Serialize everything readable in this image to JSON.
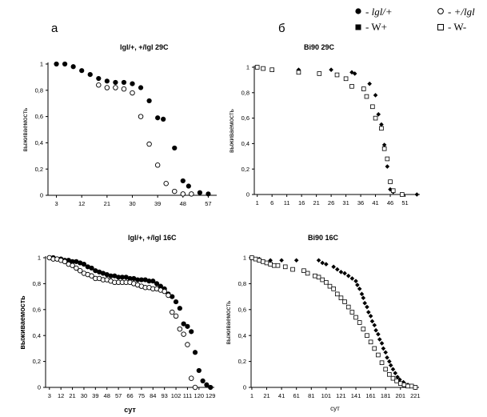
{
  "panel_labels": [
    "а",
    "б"
  ],
  "legend": {
    "items": [
      {
        "symbol": "filled-circle",
        "text": "- lgl/+",
        "italic": true
      },
      {
        "symbol": "open-circle",
        "text": "- +/lgl",
        "italic": true
      },
      {
        "symbol": "filled-square",
        "text": "- W+",
        "italic": false
      },
      {
        "symbol": "open-square",
        "text": "-  W-",
        "italic": false
      }
    ]
  },
  "chart_data": [
    {
      "id": "c1",
      "type": "scatter",
      "title": "lgl/+, +/lgl  29C",
      "xlabel": "",
      "ylabel": "выживаемость",
      "xticks": [
        "3",
        "12",
        "21",
        "30",
        "39",
        "48",
        "57"
      ],
      "xlim": [
        0,
        60
      ],
      "ylim": [
        0,
        1
      ],
      "yticks": [
        "0",
        "0,2",
        "0,4",
        "0,6",
        "0,8",
        "1"
      ],
      "series": [
        {
          "name": "lgl/+",
          "marker": "filled-circle",
          "x": [
            3,
            6,
            9,
            12,
            15,
            18,
            21,
            24,
            27,
            30,
            33,
            36,
            39,
            41,
            45,
            48,
            50,
            54,
            57
          ],
          "y": [
            1.0,
            1.0,
            0.98,
            0.95,
            0.92,
            0.89,
            0.87,
            0.86,
            0.86,
            0.85,
            0.82,
            0.72,
            0.59,
            0.58,
            0.36,
            0.11,
            0.07,
            0.02,
            0.01
          ]
        },
        {
          "name": "+/lgl",
          "marker": "open-circle",
          "x": [
            18,
            21,
            24,
            27,
            30,
            33,
            36,
            39,
            42,
            45,
            48,
            51
          ],
          "y": [
            0.84,
            0.82,
            0.82,
            0.81,
            0.78,
            0.6,
            0.39,
            0.23,
            0.09,
            0.03,
            0.01,
            0.01
          ]
        }
      ]
    },
    {
      "id": "c2",
      "type": "scatter",
      "title": "Bi90 29C",
      "xlabel": "",
      "ylabel": "выживаемость",
      "xticks": [
        "1",
        "6",
        "11",
        "16",
        "21",
        "26",
        "31",
        "36",
        "41",
        "46",
        "51"
      ],
      "xlim": [
        0,
        56
      ],
      "ylim": [
        0,
        1
      ],
      "yticks": [
        "0",
        "0,2",
        "0,4",
        "0,6",
        "0,8",
        "1"
      ],
      "series": [
        {
          "name": "W+",
          "marker": "filled-diamond",
          "x": [
            1,
            15,
            26,
            33,
            34,
            39,
            41,
            42,
            43,
            44,
            45,
            46,
            47,
            55
          ],
          "y": [
            1.0,
            0.98,
            0.98,
            0.96,
            0.95,
            0.87,
            0.78,
            0.63,
            0.55,
            0.39,
            0.22,
            0.04,
            0.02,
            0.0
          ]
        },
        {
          "name": "W-",
          "marker": "open-square",
          "x": [
            1,
            3,
            6,
            15,
            22,
            28,
            31,
            33,
            37,
            38,
            40,
            41,
            43,
            44,
            45,
            46,
            47,
            50
          ],
          "y": [
            1.0,
            0.99,
            0.98,
            0.96,
            0.95,
            0.94,
            0.91,
            0.85,
            0.83,
            0.77,
            0.69,
            0.6,
            0.52,
            0.36,
            0.28,
            0.1,
            0.03,
            0.0
          ]
        }
      ]
    },
    {
      "id": "c3",
      "type": "scatter",
      "title": "lgl/+, +/lgl   16C",
      "xlabel": "сут",
      "ylabel": "выживаемость",
      "xticks": [
        "3",
        "12",
        "21",
        "30",
        "39",
        "48",
        "57",
        "66",
        "75",
        "84",
        "93",
        "102",
        "111",
        "120",
        "129"
      ],
      "xlim": [
        0,
        132
      ],
      "ylim": [
        0,
        1
      ],
      "yticks": [
        "0",
        "0,2",
        "0,4",
        "0,6",
        "0,8",
        "1"
      ],
      "series": [
        {
          "name": "lgl/+",
          "marker": "filled-circle",
          "x": [
            3,
            6,
            9,
            12,
            15,
            18,
            21,
            24,
            27,
            30,
            33,
            36,
            39,
            42,
            45,
            48,
            51,
            54,
            57,
            60,
            63,
            66,
            69,
            72,
            75,
            78,
            81,
            84,
            87,
            90,
            93,
            96,
            99,
            102,
            105,
            108,
            111,
            114,
            117,
            120,
            123,
            126,
            129
          ],
          "y": [
            1.0,
            1.0,
            0.99,
            0.99,
            0.98,
            0.98,
            0.97,
            0.97,
            0.96,
            0.95,
            0.93,
            0.92,
            0.9,
            0.89,
            0.88,
            0.87,
            0.86,
            0.86,
            0.85,
            0.85,
            0.85,
            0.84,
            0.84,
            0.83,
            0.83,
            0.83,
            0.82,
            0.82,
            0.8,
            0.78,
            0.76,
            0.72,
            0.7,
            0.66,
            0.61,
            0.49,
            0.47,
            0.43,
            0.27,
            0.13,
            0.05,
            0.02,
            0.0
          ]
        },
        {
          "name": "+/lgl",
          "marker": "open-circle",
          "x": [
            3,
            6,
            9,
            12,
            15,
            18,
            21,
            24,
            27,
            30,
            33,
            36,
            39,
            42,
            45,
            48,
            51,
            54,
            57,
            60,
            63,
            66,
            69,
            72,
            75,
            78,
            81,
            84,
            87,
            90,
            93,
            96,
            99,
            102,
            105,
            108,
            111,
            114,
            117
          ],
          "y": [
            1.0,
            0.99,
            0.99,
            0.98,
            0.97,
            0.95,
            0.94,
            0.92,
            0.9,
            0.88,
            0.87,
            0.86,
            0.84,
            0.84,
            0.83,
            0.83,
            0.82,
            0.81,
            0.81,
            0.81,
            0.81,
            0.81,
            0.8,
            0.79,
            0.78,
            0.77,
            0.77,
            0.76,
            0.76,
            0.75,
            0.74,
            0.71,
            0.58,
            0.55,
            0.45,
            0.41,
            0.33,
            0.07,
            0.0
          ]
        }
      ]
    },
    {
      "id": "c4",
      "type": "scatter",
      "title": "Bi90 16C",
      "xlabel": "сут",
      "ylabel": "выживаемость",
      "xticks": [
        "1",
        "21",
        "41",
        "61",
        "81",
        "101",
        "121",
        "141",
        "161",
        "181",
        "201",
        "221"
      ],
      "xlim": [
        0,
        226
      ],
      "ylim": [
        0,
        1
      ],
      "yticks": [
        "0",
        "0,2",
        "0,4",
        "0,6",
        "0,8",
        "1"
      ],
      "series": [
        {
          "name": "W+",
          "marker": "filled-diamond",
          "x": [
            1,
            11,
            26,
            41,
            61,
            91,
            96,
            101,
            111,
            116,
            121,
            126,
            131,
            136,
            141,
            143,
            146,
            149,
            151,
            153,
            156,
            158,
            161,
            163,
            166,
            168,
            171,
            173,
            176,
            178,
            181,
            183,
            186,
            188,
            191,
            194,
            197,
            200,
            205,
            211,
            216,
            221
          ],
          "y": [
            1.0,
            0.99,
            0.98,
            0.98,
            0.98,
            0.98,
            0.96,
            0.95,
            0.93,
            0.91,
            0.89,
            0.88,
            0.86,
            0.84,
            0.82,
            0.79,
            0.76,
            0.72,
            0.69,
            0.65,
            0.62,
            0.58,
            0.55,
            0.51,
            0.48,
            0.44,
            0.41,
            0.37,
            0.34,
            0.3,
            0.27,
            0.23,
            0.2,
            0.17,
            0.14,
            0.11,
            0.08,
            0.06,
            0.04,
            0.02,
            0.01,
            0.0
          ]
        },
        {
          "name": "W-",
          "marker": "open-square",
          "x": [
            1,
            6,
            11,
            16,
            21,
            26,
            31,
            36,
            46,
            56,
            71,
            76,
            86,
            91,
            96,
            101,
            106,
            111,
            116,
            121,
            126,
            131,
            136,
            141,
            146,
            151,
            156,
            161,
            166,
            171,
            176,
            181,
            186,
            191,
            196,
            201,
            206,
            211,
            216,
            221
          ],
          "y": [
            1.0,
            0.99,
            0.98,
            0.97,
            0.96,
            0.95,
            0.94,
            0.94,
            0.93,
            0.91,
            0.9,
            0.88,
            0.86,
            0.85,
            0.83,
            0.81,
            0.78,
            0.76,
            0.72,
            0.69,
            0.66,
            0.62,
            0.58,
            0.54,
            0.5,
            0.45,
            0.4,
            0.35,
            0.3,
            0.25,
            0.19,
            0.14,
            0.1,
            0.07,
            0.05,
            0.03,
            0.02,
            0.01,
            0.01,
            0.0
          ]
        }
      ]
    }
  ]
}
